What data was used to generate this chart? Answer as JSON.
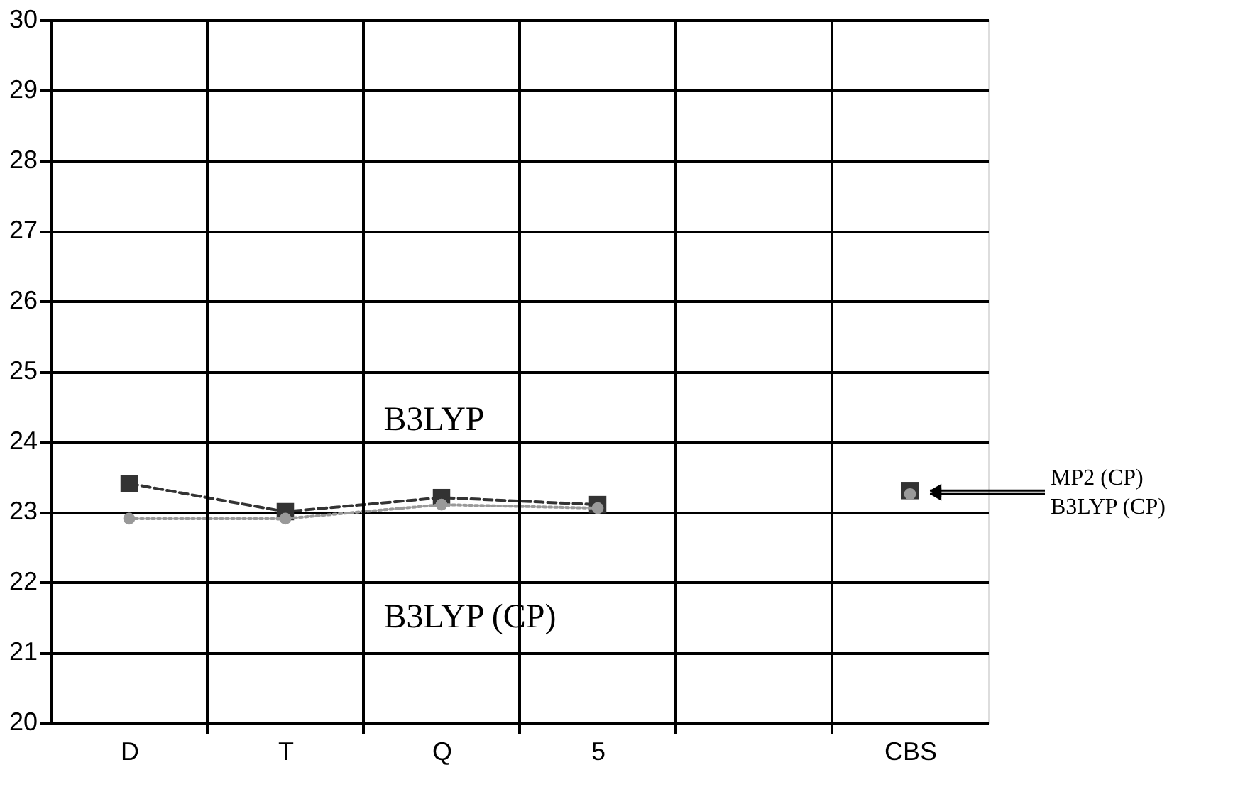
{
  "chart_data": {
    "type": "line",
    "categories": [
      "D",
      "T",
      "Q",
      "5",
      null,
      "CBS"
    ],
    "series": [
      {
        "name": "MP2 (CP)",
        "color": "#333333",
        "marker": "square",
        "line_style": "dashed",
        "values": [
          23.4,
          23.0,
          23.2,
          23.1,
          null,
          23.3
        ]
      },
      {
        "name": "B3LYP (CP)",
        "color": "#999999",
        "marker": "circle",
        "line_style": "dotted",
        "values": [
          22.9,
          22.9,
          23.1,
          23.05,
          null,
          23.25
        ]
      }
    ],
    "ylim": [
      20,
      30
    ],
    "yticks": [
      20,
      21,
      22,
      23,
      24,
      25,
      26,
      27,
      28,
      29,
      30
    ],
    "annotations": [
      "B3LYP",
      "B3LYP (CP)"
    ],
    "grid": true,
    "legend": false
  }
}
